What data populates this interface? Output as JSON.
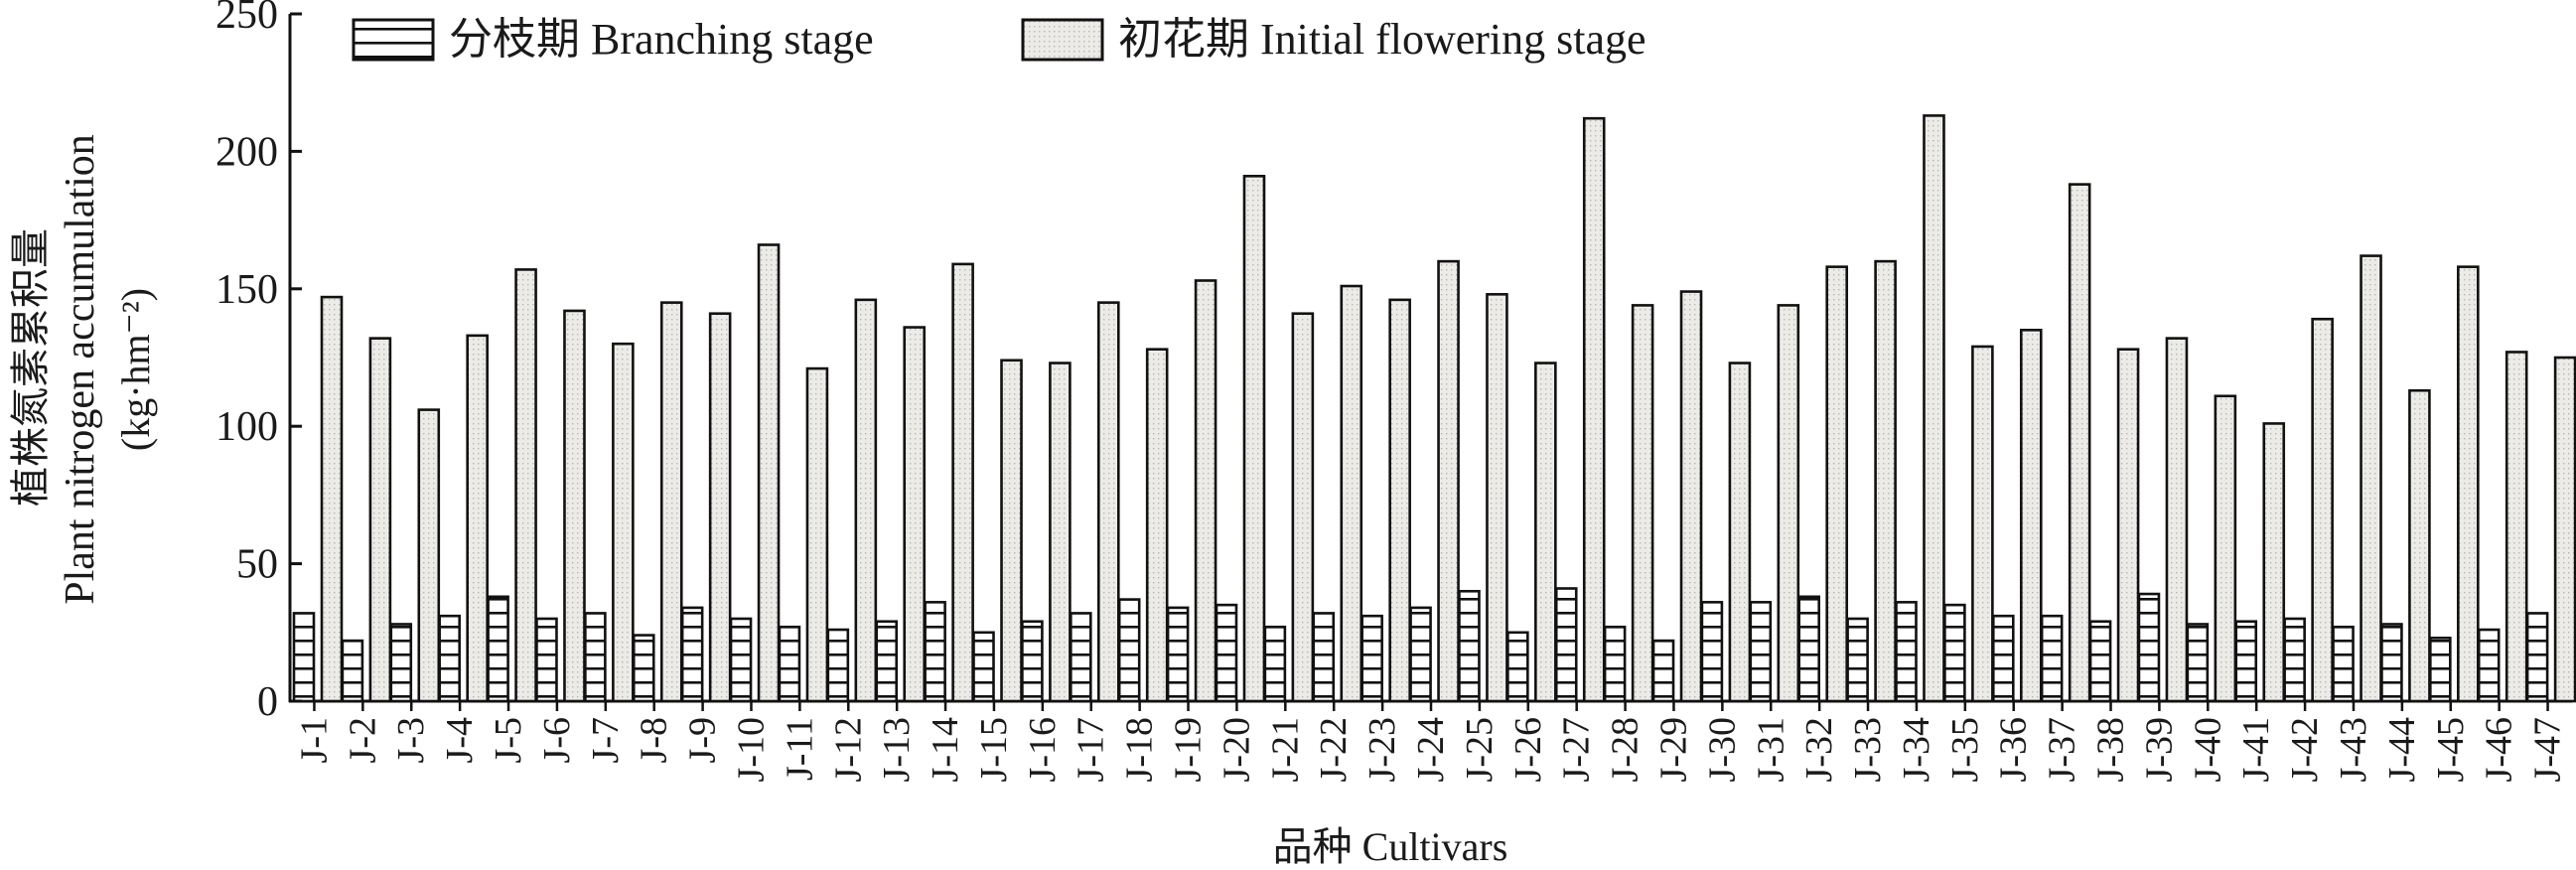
{
  "chart_data": {
    "type": "bar",
    "ylabel_cn": "植株氮素累积量",
    "ylabel_en": "Plant nitrogen accumulation",
    "ylabel_unit": "(kg·hm⁻²)",
    "xlabel": "品种 Cultivars",
    "ylim": [
      0,
      250
    ],
    "yticks": [
      0,
      50,
      100,
      150,
      200,
      250
    ],
    "legend_position": "top-left",
    "categories": [
      "J-1",
      "J-2",
      "J-3",
      "J-4",
      "J-5",
      "J-6",
      "J-7",
      "J-8",
      "J-9",
      "J-10",
      "J-11",
      "J-12",
      "J-13",
      "J-14",
      "J-15",
      "J-16",
      "J-17",
      "J-18",
      "J-19",
      "J-20",
      "J-21",
      "J-22",
      "J-23",
      "J-24",
      "J-25",
      "J-26",
      "J-27",
      "J-28",
      "J-29",
      "J-30",
      "J-31",
      "J-32",
      "J-33",
      "J-34",
      "J-35",
      "J-36",
      "J-37",
      "J-38",
      "J-39",
      "J-40",
      "J-41",
      "J-42",
      "J-43",
      "J-44",
      "J-45",
      "J-46",
      "J-47"
    ],
    "series": [
      {
        "name": "分枝期 Branching stage",
        "pattern": "horizontal-stripes",
        "color": "#ffffff",
        "values": [
          32,
          22,
          28,
          31,
          38,
          30,
          32,
          24,
          34,
          30,
          27,
          26,
          29,
          36,
          25,
          29,
          32,
          37,
          34,
          35,
          27,
          32,
          31,
          34,
          40,
          25,
          41,
          27,
          22,
          36,
          36,
          38,
          30,
          36,
          35,
          31,
          31,
          29,
          39,
          28,
          29,
          30,
          27,
          28,
          23,
          26,
          32
        ]
      },
      {
        "name": "初花期 Initial flowering stage",
        "pattern": "dotted",
        "color": "#e8e6e2",
        "values": [
          147,
          132,
          106,
          133,
          157,
          142,
          130,
          145,
          141,
          166,
          121,
          146,
          136,
          159,
          124,
          123,
          145,
          128,
          153,
          191,
          141,
          151,
          146,
          160,
          148,
          123,
          212,
          144,
          149,
          123,
          144,
          158,
          160,
          213,
          129,
          135,
          188,
          128,
          132,
          111,
          101,
          139,
          162,
          113,
          158,
          127,
          125
        ]
      }
    ]
  }
}
